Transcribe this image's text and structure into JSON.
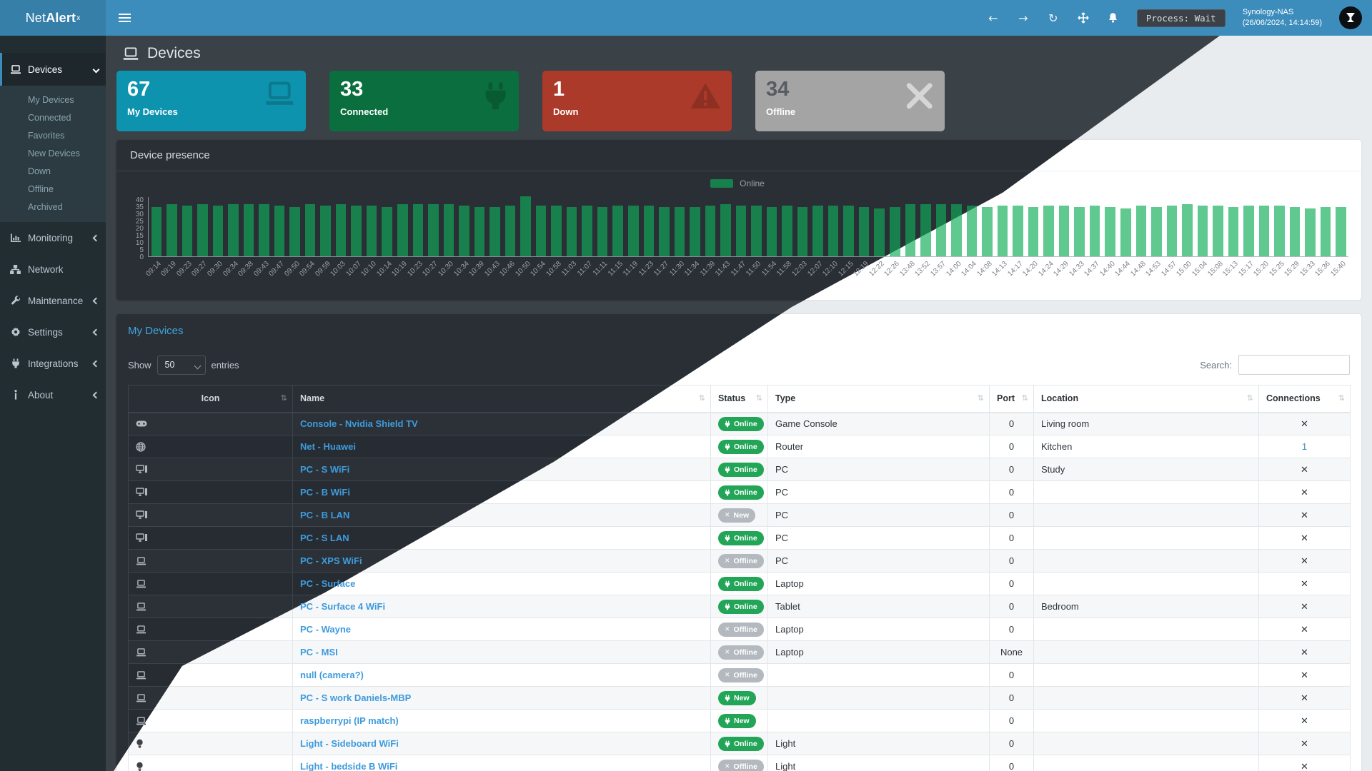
{
  "navbar": {
    "brand_prefix": "Net",
    "brand_bold": "Alert",
    "brand_sup": "x",
    "process_badge": "Process: Wait",
    "host": "Synology-NAS",
    "timestamp": "(26/06/2024, 14:14:59)"
  },
  "sidebar": {
    "devices_label": "Devices",
    "submenu": [
      "My Devices",
      "Connected",
      "Favorites",
      "New Devices",
      "Down",
      "Offline",
      "Archived"
    ],
    "items": [
      {
        "icon": "chart-icon",
        "label": "Monitoring",
        "chevron": true
      },
      {
        "icon": "sitemap-icon",
        "label": "Network",
        "chevron": false
      },
      {
        "icon": "wrench-icon",
        "label": "Maintenance",
        "chevron": true
      },
      {
        "icon": "gear-icon",
        "label": "Settings",
        "chevron": true
      },
      {
        "icon": "plug-icon",
        "label": "Integrations",
        "chevron": true
      },
      {
        "icon": "info-icon",
        "label": "About",
        "chevron": true
      }
    ]
  },
  "page": {
    "title": "Devices"
  },
  "cards": [
    {
      "value": "67",
      "label": "My Devices",
      "icon": "laptop-icon",
      "color": "#0e93ae",
      "style": "teal"
    },
    {
      "value": "33",
      "label": "Connected",
      "icon": "plug-icon",
      "color": "#0b6e3e",
      "style": "green"
    },
    {
      "value": "1",
      "label": "Down",
      "icon": "warning-icon",
      "color": "#ac3a2a",
      "style": "red"
    },
    {
      "value": "34",
      "label": "Offline",
      "icon": "x-icon",
      "color": "#a4a4a4",
      "style": "gray"
    }
  ],
  "presence": {
    "title": "Device presence",
    "legend": "Online"
  },
  "chart_data": {
    "type": "bar",
    "title": "Device presence",
    "legend_entries": [
      "Online"
    ],
    "legend_position": "top-center",
    "grid": false,
    "ylim": [
      0,
      40
    ],
    "yticks": [
      0,
      5,
      10,
      15,
      20,
      25,
      30,
      35,
      40
    ],
    "categories": [
      "09:14",
      "09:19",
      "09:23",
      "09:27",
      "09:30",
      "09:34",
      "09:38",
      "09:43",
      "09:47",
      "09:50",
      "09:54",
      "09:59",
      "10:03",
      "10:07",
      "10:10",
      "10:14",
      "10:19",
      "10:23",
      "10:27",
      "10:30",
      "10:34",
      "10:39",
      "10:43",
      "10:46",
      "10:50",
      "10:54",
      "10:58",
      "11:03",
      "11:07",
      "11:11",
      "11:15",
      "11:19",
      "11:23",
      "11:27",
      "11:30",
      "11:34",
      "11:39",
      "11:43",
      "11:47",
      "11:50",
      "11:54",
      "11:58",
      "12:03",
      "12:07",
      "12:10",
      "12:15",
      "12:19",
      "12:22",
      "12:26",
      "13:48",
      "13:52",
      "13:57",
      "14:00",
      "14:04",
      "14:08",
      "14:13",
      "14:17",
      "14:20",
      "14:24",
      "14:29",
      "14:33",
      "14:37",
      "14:40",
      "14:44",
      "14:48",
      "14:53",
      "14:57",
      "15:00",
      "15:04",
      "15:08",
      "15:13",
      "15:17",
      "15:20",
      "15:25",
      "15:29",
      "15:33",
      "15:36",
      "15:40"
    ],
    "series": [
      {
        "name": "Online",
        "values": [
          33,
          35,
          34,
          35,
          34,
          35,
          35,
          35,
          34,
          33,
          35,
          34,
          35,
          34,
          34,
          33,
          35,
          35,
          35,
          35,
          34,
          33,
          33,
          34,
          40,
          34,
          34,
          33,
          34,
          33,
          34,
          34,
          34,
          33,
          33,
          33,
          34,
          35,
          34,
          34,
          33,
          34,
          33,
          34,
          34,
          34,
          33,
          32,
          33,
          35,
          35,
          35,
          35,
          34,
          33,
          34,
          34,
          33,
          34,
          34,
          33,
          34,
          33,
          32,
          34,
          33,
          34,
          35,
          34,
          34,
          33,
          34,
          34,
          34,
          33,
          32,
          33,
          33
        ]
      }
    ]
  },
  "devices_table": {
    "heading": "My Devices",
    "show_label": "Show",
    "page_size": "50",
    "entries_label": "entries",
    "search_label": "Search:",
    "search_value": "",
    "columns": [
      "Icon",
      "Name",
      "Status",
      "Type",
      "Port",
      "Location",
      "Connections"
    ],
    "rows": [
      {
        "icon": "gamepad-icon",
        "name": "Console - Nvidia Shield TV",
        "status": "Online",
        "badge": "green",
        "type": "Game Console",
        "port": "0",
        "location": "Living room",
        "conn": "x"
      },
      {
        "icon": "globe-icon",
        "name": "Net - Huawei",
        "status": "Online",
        "badge": "green",
        "type": "Router",
        "port": "0",
        "location": "Kitchen",
        "conn": "1"
      },
      {
        "icon": "desktop-icon",
        "name": "PC - S WiFi",
        "status": "Online",
        "badge": "green",
        "type": "PC",
        "port": "0",
        "location": "Study",
        "conn": "x"
      },
      {
        "icon": "desktop-icon",
        "name": "PC - B WiFi",
        "status": "Online",
        "badge": "green",
        "type": "PC",
        "port": "0",
        "location": "",
        "conn": "x"
      },
      {
        "icon": "desktop-icon",
        "name": "PC - B LAN",
        "status": "New",
        "badge": "gray",
        "type": "PC",
        "port": "0",
        "location": "",
        "conn": "x"
      },
      {
        "icon": "desktop-icon",
        "name": "PC - S LAN",
        "status": "Online",
        "badge": "green",
        "type": "PC",
        "port": "0",
        "location": "",
        "conn": "x"
      },
      {
        "icon": "laptop-icon",
        "name": "PC - XPS WiFi",
        "status": "Offline",
        "badge": "gray",
        "type": "PC",
        "port": "0",
        "location": "",
        "conn": "x"
      },
      {
        "icon": "laptop-icon",
        "name": "PC - Surface",
        "status": "Online",
        "badge": "green",
        "type": "Laptop",
        "port": "0",
        "location": "",
        "conn": "x"
      },
      {
        "icon": "laptop-icon",
        "name": "PC - Surface 4 WiFi",
        "status": "Online",
        "badge": "green",
        "type": "Tablet",
        "port": "0",
        "location": "Bedroom",
        "conn": "x"
      },
      {
        "icon": "laptop-icon",
        "name": "PC - Wayne",
        "status": "Offline",
        "badge": "gray",
        "type": "Laptop",
        "port": "0",
        "location": "",
        "conn": "x"
      },
      {
        "icon": "laptop-icon",
        "name": "PC - MSI",
        "status": "Offline",
        "badge": "gray",
        "type": "Laptop",
        "port": "None",
        "location": "",
        "conn": "x"
      },
      {
        "icon": "laptop-icon",
        "name": "null (camera?)",
        "status": "Offline",
        "badge": "gray",
        "type": "",
        "port": "0",
        "location": "",
        "conn": "x"
      },
      {
        "icon": "laptop-icon",
        "name": "PC - S work Daniels-MBP",
        "status": "New",
        "badge": "green",
        "type": "",
        "port": "0",
        "location": "",
        "conn": "x"
      },
      {
        "icon": "laptop-icon",
        "name": "raspberrypi (IP match)",
        "status": "New",
        "badge": "green",
        "type": "",
        "port": "0",
        "location": "",
        "conn": "x"
      },
      {
        "icon": "bulb-icon",
        "name": "Light - Sideboard WiFi",
        "status": "Online",
        "badge": "green",
        "type": "Light",
        "port": "0",
        "location": "",
        "conn": "x"
      },
      {
        "icon": "bulb-icon",
        "name": "Light - bedside B WiFi",
        "status": "Offline",
        "badge": "gray",
        "type": "Light",
        "port": "0",
        "location": "",
        "conn": "x"
      }
    ]
  },
  "colors": {
    "navbar": "#3c8dbc",
    "brand_bg": "#367fa9",
    "sidebar": "#222d32",
    "link_blue": "#3e9bdd",
    "heading_blue": "#3fa7e1",
    "badge_green": "#23a558",
    "badge_gray": "#b3b9bf",
    "bar_dark": "#17804d",
    "bar_light": "#5fc98f"
  }
}
